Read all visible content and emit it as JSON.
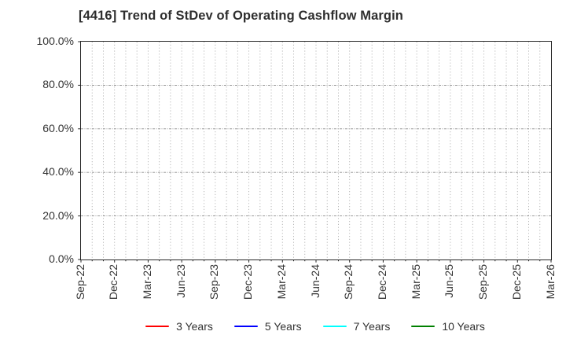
{
  "chart_data": {
    "type": "line",
    "title": "[4416]  Trend of StDev of Operating Cashflow Margin",
    "x_axis": {
      "tick_labels": [
        "Sep-22",
        "Dec-22",
        "Mar-23",
        "Jun-23",
        "Sep-23",
        "Dec-23",
        "Mar-24",
        "Jun-24",
        "Sep-24",
        "Dec-24",
        "Mar-25",
        "Jun-25",
        "Sep-25",
        "Dec-25",
        "Mar-26"
      ],
      "minor_divisions_per_interval": 3,
      "tick_label_rotation_deg": 90
    },
    "y_axis": {
      "tick_labels": [
        "0.0%",
        "20.0%",
        "40.0%",
        "60.0%",
        "80.0%",
        "100.0%"
      ],
      "range": [
        0,
        100
      ],
      "major_step": 20,
      "unit": "%"
    },
    "grid": {
      "visible": true,
      "vertical": "dotted, every month (3 per labeled quarter)",
      "horizontal": "dash-dot at each 20% major tick"
    },
    "legend": {
      "position": "bottom-center",
      "entries": [
        {
          "label": "3 Years",
          "color": "#ff0000"
        },
        {
          "label": "5 Years",
          "color": "#0000ff"
        },
        {
          "label": "7 Years",
          "color": "#00ffff"
        },
        {
          "label": "10 Years",
          "color": "#008000"
        }
      ]
    },
    "series": [
      {
        "name": "3 Years",
        "color": "#ff0000",
        "values": []
      },
      {
        "name": "5 Years",
        "color": "#0000ff",
        "values": []
      },
      {
        "name": "7 Years",
        "color": "#00ffff",
        "values": []
      },
      {
        "name": "10 Years",
        "color": "#008000",
        "values": []
      }
    ],
    "visible_data_points": 0,
    "style": {
      "axis_color": "#262626",
      "grid_color": "#b0b0b0",
      "text_color": "#333333",
      "background": "#ffffff"
    }
  }
}
